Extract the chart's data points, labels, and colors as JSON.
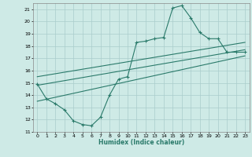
{
  "xlabel": "Humidex (Indice chaleur)",
  "bg_color": "#ceeae6",
  "grid_color": "#aacccc",
  "line_color": "#2a7a6a",
  "xlim": [
    -0.5,
    23.5
  ],
  "ylim": [
    11,
    21.5
  ],
  "xticks": [
    0,
    1,
    2,
    3,
    4,
    5,
    6,
    7,
    8,
    9,
    10,
    11,
    12,
    13,
    14,
    15,
    16,
    17,
    18,
    19,
    20,
    21,
    22,
    23
  ],
  "yticks": [
    11,
    12,
    13,
    14,
    15,
    16,
    17,
    18,
    19,
    20,
    21
  ],
  "curve1_x": [
    0,
    1,
    2,
    3,
    4,
    5,
    6,
    7,
    8,
    9,
    10,
    11,
    12,
    13,
    14,
    15,
    16,
    17,
    18,
    19,
    20,
    21,
    22,
    23
  ],
  "curve1_y": [
    14.9,
    13.7,
    13.3,
    12.8,
    11.9,
    11.6,
    11.5,
    12.2,
    14.0,
    15.3,
    15.5,
    18.3,
    18.4,
    18.6,
    18.7,
    21.1,
    21.3,
    20.3,
    19.1,
    18.6,
    18.6,
    17.5,
    17.5,
    17.5
  ],
  "line1_x": [
    0,
    23
  ],
  "line1_y": [
    13.5,
    17.2
  ],
  "line2_x": [
    0,
    23
  ],
  "line2_y": [
    14.8,
    17.7
  ],
  "line3_x": [
    0,
    23
  ],
  "line3_y": [
    15.5,
    18.3
  ]
}
